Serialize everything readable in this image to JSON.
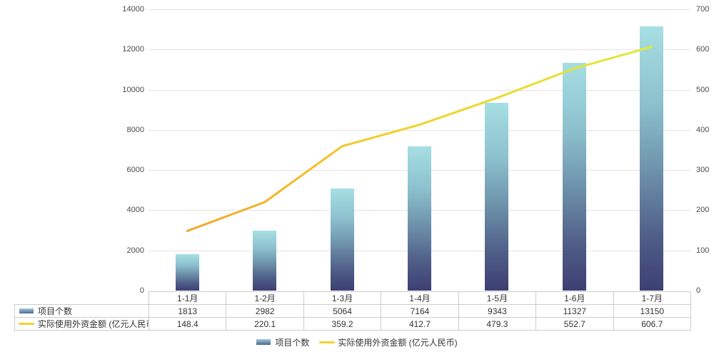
{
  "chart_data": {
    "type": "bar",
    "subtype": "bar-line-combo",
    "title": "",
    "categories": [
      "1-1月",
      "1-2月",
      "1-3月",
      "1-4月",
      "1-5月",
      "1-6月",
      "1-7月"
    ],
    "series": [
      {
        "name": "项目个数",
        "type": "bar",
        "axis": "left",
        "values": [
          1813,
          2982,
          5064,
          7164,
          9343,
          11327,
          13150
        ],
        "values_text": [
          "1813",
          "2982",
          "5064",
          "7164",
          "9343",
          "11327",
          "13150"
        ]
      },
      {
        "name": "实际使用外资金额 (亿元人民币)",
        "type": "line",
        "axis": "right",
        "values": [
          148.4,
          220.1,
          359.2,
          412.7,
          479.3,
          552.7,
          606.7
        ],
        "values_text": [
          "148.4",
          "220.1",
          "359.2",
          "412.7",
          "479.3",
          "552.7",
          "606.7"
        ]
      }
    ],
    "left_axis": {
      "min": 0,
      "max": 14000,
      "step": 2000,
      "ticks": [
        "14000",
        "12000",
        "10000",
        "8000",
        "6000",
        "4000",
        "2000",
        "0"
      ]
    },
    "right_axis": {
      "min": 0,
      "max": 700,
      "step": 100,
      "ticks": [
        "700",
        "600",
        "500",
        "400",
        "300",
        "200",
        "100",
        "0"
      ]
    },
    "grid": true,
    "legend_position": "bottom",
    "data_table_shown": true,
    "colors": {
      "bar_gradient_top": "#a6dfe3",
      "bar_gradient_mid": "#6d91aa",
      "bar_gradient_bottom": "#3d3f73",
      "line_gradient_start": "#f5a328",
      "line_gradient_mid": "#f3d02a",
      "line_gradient_end": "#dfe93d",
      "gridline": "#e4e4e4",
      "table_border": "#cccccc",
      "text": "#333333"
    }
  },
  "legend": {
    "bar_label": "项目个数",
    "line_label": "实际使用外资金额 (亿元人民币)"
  }
}
